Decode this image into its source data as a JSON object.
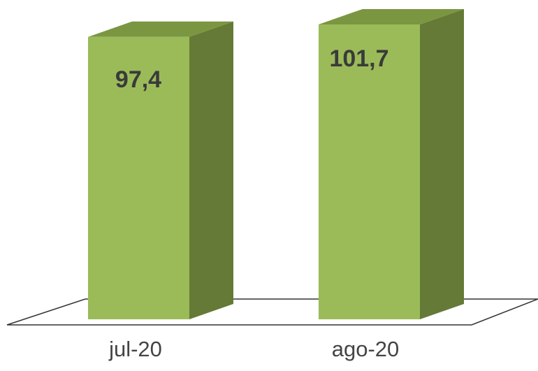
{
  "chart_data": {
    "type": "bar",
    "style": "3d-column",
    "categories": [
      "jul-20",
      "ago-20"
    ],
    "values": [
      97.4,
      101.7
    ],
    "data_labels": [
      "97,4",
      "101,7"
    ],
    "title": "",
    "xlabel": "",
    "ylabel": "",
    "grid": false,
    "legend": "none",
    "colors": {
      "bar_front": "#9bbb59",
      "bar_side": "#647a36",
      "bar_top": "#7b9640",
      "floor_stroke": "#333333"
    }
  }
}
